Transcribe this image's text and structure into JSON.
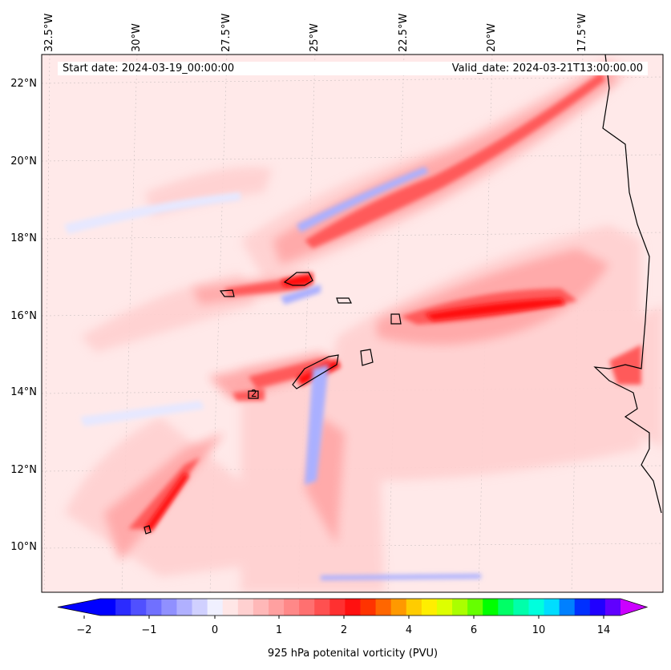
{
  "map": {
    "info": {
      "start_date": "Start date: 2024-03-19_00:00:00",
      "valid_date": "Valid_date: 2024-03-21T13:00:00.00"
    },
    "lon_labels": [
      "32.5°W",
      "30°W",
      "27.5°W",
      "25°W",
      "22.5°W",
      "20°W",
      "17.5°W"
    ],
    "lat_labels": [
      "22°N",
      "20°N",
      "18°N",
      "16°N",
      "14°N",
      "12°N",
      "10°N"
    ],
    "contour_label": "2",
    "colors": {
      "background": "#ffe9e9",
      "light": "#ffd0d0",
      "medium": "#ffa8a8",
      "strong": "#ff5a5a",
      "intense": "#ff1010",
      "negative": "#aab0ff",
      "negative_light": "#e6e8ff",
      "coast": "#000000"
    }
  },
  "colorbar": {
    "title": "925 hPa potenital vorticity (PVU)",
    "ticks": [
      "−2",
      "−1",
      "0",
      "1",
      "2",
      "4",
      "6",
      "10",
      "14"
    ],
    "colors": [
      "#0000ff",
      "#2b2bff",
      "#5050ff",
      "#7070ff",
      "#9090ff",
      "#b0b0ff",
      "#d0d0ff",
      "#f0f0ff",
      "#ffe6e6",
      "#ffd0d0",
      "#ffb8b8",
      "#ffa0a0",
      "#ff8888",
      "#ff7070",
      "#ff5050",
      "#ff3030",
      "#ff1010",
      "#ff3300",
      "#ff6600",
      "#ff9900",
      "#ffcc00",
      "#ffee00",
      "#ddff00",
      "#aaff00",
      "#66ff00",
      "#00ff00",
      "#00ff66",
      "#00ffaa",
      "#00ffdd",
      "#00ddff",
      "#0080ff",
      "#0030ff",
      "#2000ff",
      "#6000ff"
    ],
    "extend_low": "#0000ff",
    "extend_high": "#cc00ff"
  }
}
